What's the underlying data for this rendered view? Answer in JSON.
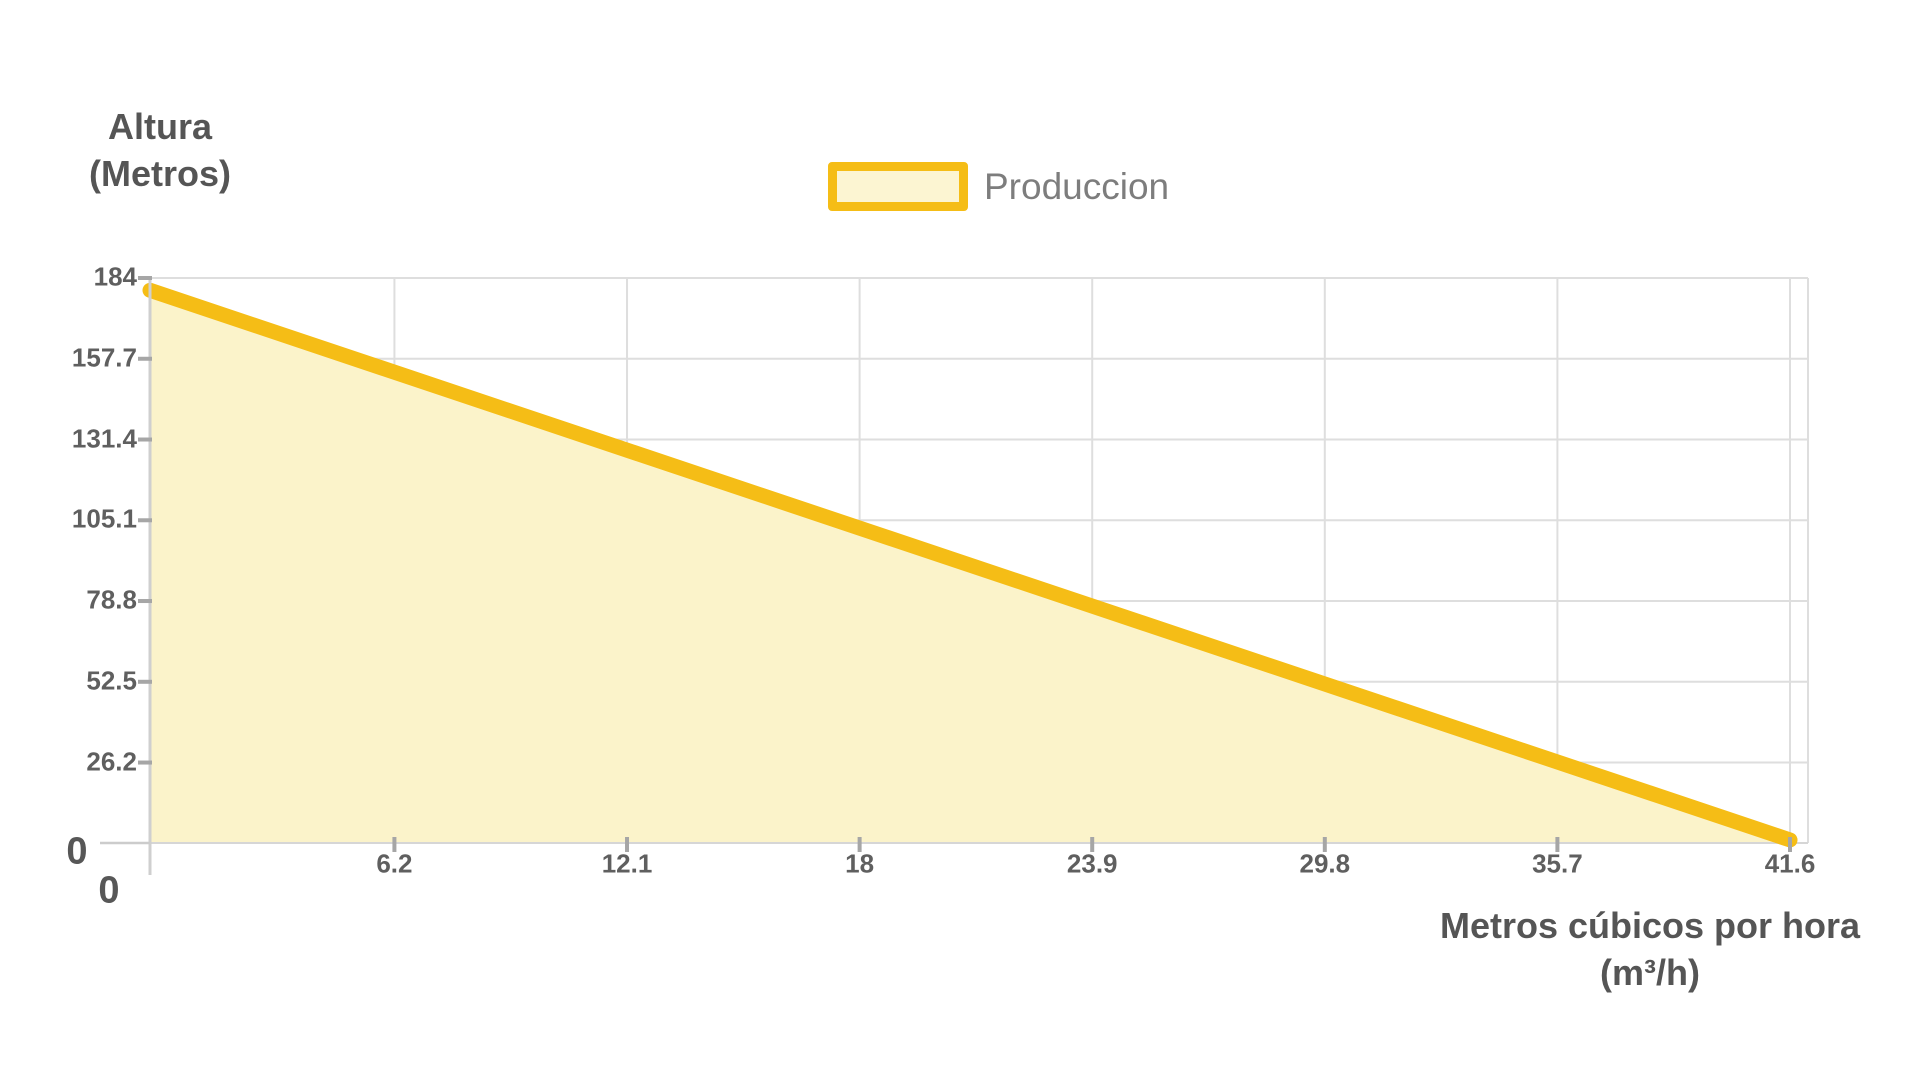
{
  "page": {
    "background": "#ffffff"
  },
  "chart_data": {
    "type": "area",
    "title": "",
    "grid": true,
    "legend": {
      "position": "top",
      "items": [
        {
          "label": "Produccion"
        }
      ]
    },
    "x_axis": {
      "title": "Metros cúbicos por hora",
      "title_unit": "(m³/h)",
      "min": 0,
      "max": 41.6,
      "tick_values": [
        0,
        6.2,
        12.1,
        18,
        23.9,
        29.8,
        35.7,
        41.6
      ],
      "tick_labels": [
        "0",
        "6.2",
        "12.1",
        "18",
        "23.9",
        "29.8",
        "35.7",
        "41.6"
      ]
    },
    "y_axis": {
      "title": "Altura",
      "title_unit": "(Metros)",
      "min": 0,
      "max": 184,
      "tick_values": [
        0,
        26.2,
        52.5,
        78.8,
        105.1,
        131.4,
        157.7,
        184
      ],
      "tick_labels": [
        "0",
        "26.2",
        "52.5",
        "78.8",
        "105.1",
        "131.4",
        "157.7",
        "184"
      ]
    },
    "series": [
      {
        "name": "Produccion",
        "shape": "linear",
        "points": [
          [
            0,
            180
          ],
          [
            41.6,
            1
          ]
        ],
        "values_at_x_ticks": [
          180,
          153.3,
          127.9,
          102.5,
          77.2,
          51.8,
          26.4,
          1
        ],
        "line_color": "#F5BD16",
        "fill_color": "#FBF3CA"
      }
    ]
  },
  "colors": {
    "grid": "#DEDEDE",
    "baseline": "#D6D6D6",
    "axis_line": "#CFCFCF",
    "zero_tick": "#CCCCCC",
    "tick_mark": "#A6A6A6",
    "tick_text": "#5F5F5F",
    "title_text": "#555555",
    "legend_text": "#7d7d7d",
    "background": "#ffffff"
  }
}
